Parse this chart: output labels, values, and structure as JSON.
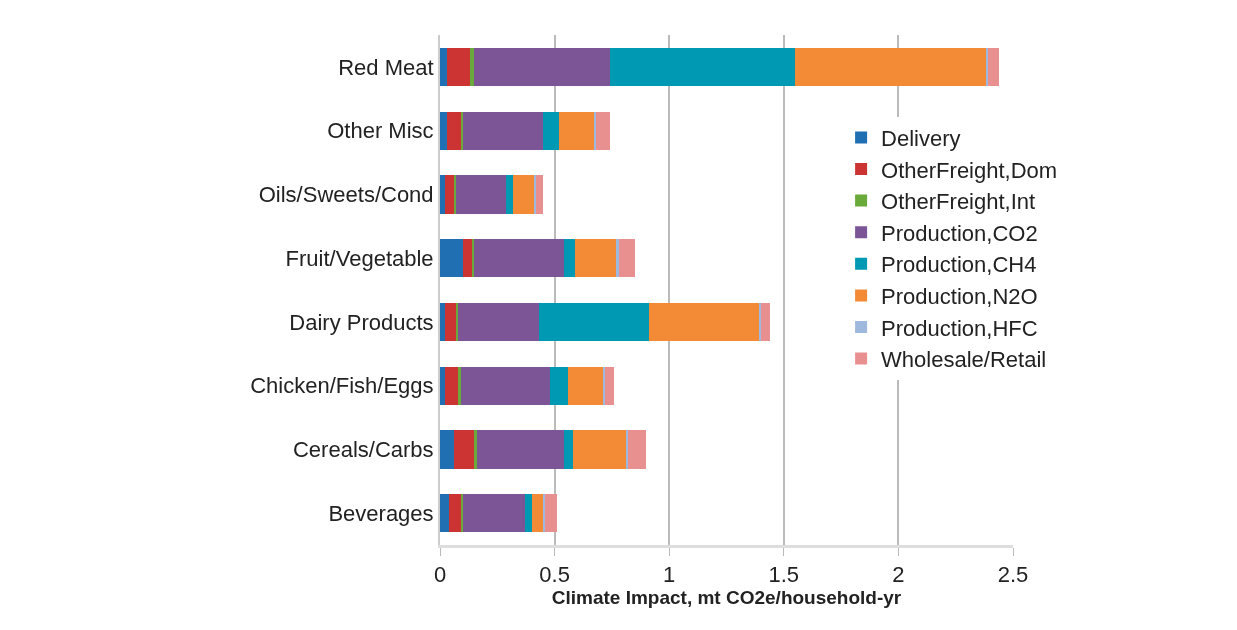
{
  "chart_data": {
    "type": "bar",
    "orientation": "horizontal",
    "stacked": true,
    "xlabel": "Climate Impact, mt CO2e/household-yr",
    "categories": [
      "Red Meat",
      "Other Misc",
      "Oils/Sweets/Cond",
      "Fruit/Vegetable",
      "Dairy Products",
      "Chicken/Fish/Eggs",
      "Cereals/Carbs",
      "Beverages"
    ],
    "series": [
      {
        "name": "Delivery",
        "color": "#1f6fb2",
        "values": [
          0.03,
          0.03,
          0.02,
          0.1,
          0.02,
          0.02,
          0.06,
          0.04
        ]
      },
      {
        "name": "OtherFreight,Dom",
        "color": "#cc3333",
        "values": [
          0.1,
          0.06,
          0.04,
          0.04,
          0.05,
          0.06,
          0.09,
          0.05
        ]
      },
      {
        "name": "OtherFreight,Int",
        "color": "#6aaa3a",
        "values": [
          0.02,
          0.01,
          0.01,
          0.01,
          0.01,
          0.01,
          0.01,
          0.01
        ]
      },
      {
        "name": "Production,CO2",
        "color": "#7b5595",
        "values": [
          0.59,
          0.35,
          0.22,
          0.39,
          0.35,
          0.39,
          0.38,
          0.27
        ]
      },
      {
        "name": "Production,CH4",
        "color": "#0099b3",
        "values": [
          0.81,
          0.07,
          0.03,
          0.05,
          0.48,
          0.08,
          0.04,
          0.03
        ]
      },
      {
        "name": "Production,N2O",
        "color": "#f28a36",
        "values": [
          0.83,
          0.15,
          0.09,
          0.18,
          0.48,
          0.15,
          0.23,
          0.05
        ]
      },
      {
        "name": "Production,HFC",
        "color": "#9fb8dd",
        "values": [
          0.01,
          0.01,
          0.01,
          0.01,
          0.01,
          0.01,
          0.01,
          0.01
        ]
      },
      {
        "name": "Wholesale/Retail",
        "color": "#e89090",
        "values": [
          0.05,
          0.06,
          0.03,
          0.07,
          0.04,
          0.04,
          0.08,
          0.05
        ]
      }
    ],
    "xlim": [
      0,
      2.5
    ],
    "xticks": [
      0,
      0.5,
      1,
      1.5,
      2,
      2.5
    ],
    "grid": "x",
    "legend": "right"
  }
}
